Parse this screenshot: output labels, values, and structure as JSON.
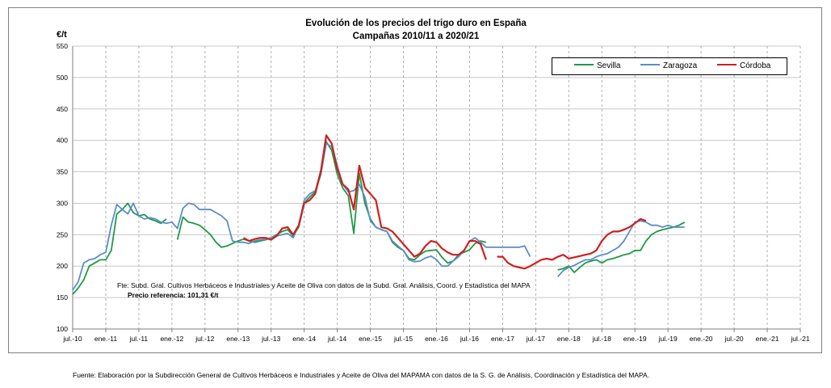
{
  "chart_data": {
    "type": "line",
    "title": "Evolución de los precios del trigo duro en España",
    "subtitle": "Campañas 2010/11 a 2020/21",
    "ylabel": "€/t",
    "ylim": [
      100,
      550
    ],
    "yticks": [
      100,
      150,
      200,
      250,
      300,
      350,
      400,
      450,
      500,
      550
    ],
    "xlim": [
      0,
      132
    ],
    "xticks": [
      0,
      6,
      12,
      18,
      24,
      30,
      36,
      42,
      48,
      54,
      60,
      66,
      72,
      78,
      84,
      90,
      96,
      102,
      108,
      114,
      120,
      126,
      132
    ],
    "xtick_labels": [
      "jul.-10",
      "ene.-11",
      "jul.-11",
      "ene.-12",
      "jul.-12",
      "ene.-13",
      "jul.-13",
      "ene.-14",
      "jul.-14",
      "ene.-15",
      "jul.-15",
      "ene.-16",
      "jul.-16",
      "ene.-17",
      "jul.-17",
      "ene.-18",
      "jul.-18",
      "ene.-19",
      "jul.-19",
      "ene.-20",
      "jul.-20",
      "ene.-21",
      "jul.-21"
    ],
    "grid": true,
    "legend_position": "top-right",
    "series": [
      {
        "name": "Sevilla",
        "color": "#1e9a46",
        "x": [
          0,
          1,
          2,
          3,
          4,
          5,
          6,
          7,
          8,
          9,
          10,
          11,
          12,
          13,
          14,
          15,
          16,
          17,
          18,
          19,
          20,
          21,
          22,
          23,
          24,
          25,
          26,
          27,
          28,
          29,
          30,
          31,
          32,
          33,
          34,
          35,
          36,
          37,
          38,
          39,
          40,
          41,
          42,
          43,
          44,
          45,
          46,
          47,
          48,
          49,
          50,
          51,
          52,
          53,
          54,
          55,
          56,
          57,
          58,
          59,
          60,
          61,
          62,
          63,
          64,
          65,
          66,
          67,
          68,
          69,
          70,
          71,
          72,
          73,
          74,
          75,
          76,
          77,
          78,
          79,
          80,
          81,
          82,
          83,
          84,
          85,
          86,
          87,
          88,
          89,
          90,
          91,
          92,
          93,
          94,
          95,
          96,
          97,
          98,
          99,
          100,
          101,
          102,
          103,
          104,
          105,
          106,
          107,
          108,
          109,
          110,
          111,
          112,
          113,
          114,
          115,
          116,
          117,
          118,
          119,
          120,
          121
        ],
        "values": [
          155,
          175,
          200,
          205,
          210,
          215,
          230,
          285,
          295,
          300,
          285,
          280,
          275,
          270,
          270,
          275,
          270,
          null,
          245,
          280,
          275,
          270,
          270,
          260,
          255,
          245,
          232,
          230,
          235,
          240,
          245,
          240,
          238,
          240,
          240,
          243,
          248,
          255,
          260,
          245,
          260,
          300,
          310,
          320,
          345,
          395,
          380,
          345,
          325,
          315,
          255,
          340,
          300,
          275,
          260,
          258,
          255,
          240,
          230,
          225,
          215,
          215,
          220,
          225,
          225,
          225,
          210,
          200,
          205,
          215,
          220,
          225,
          235,
          238,
          240,
          null,
          null,
          null,
          null,
          null,
          null,
          null,
          null,
          null,
          null,
          null,
          null,
          null,
          null,
          null,
          null,
          null,
          null,
          null,
          null,
          null,
          null,
          null,
          null,
          null,
          null,
          null,
          null,
          null,
          null,
          null,
          null,
          null,
          null,
          null,
          null,
          null,
          null,
          null,
          null,
          null,
          null,
          null,
          null,
          null,
          null,
          null
        ],
        "note": "approximate"
      },
      {
        "name": "Zaragoza",
        "color": "#5b8dc6",
        "values_note": "approximate"
      },
      {
        "name": "Córdoba",
        "color": "#d01f1f"
      }
    ]
  },
  "source_note": "Fte: Subd. Gral. Cultivos Herbáceos e Industriales y Aceite de Oliva con datos de la Subd. Gral. Análisis, Coord. y Estadística del MAPA",
  "reference_price": "Precio referencia: 101,31 €/t",
  "footer": "Fuente: Elaboración por la Subdirección General de Cultivos Herbáceos e Industriales y Aceite de Oliva del MAPAMA con datos de la S. G. de Análisis, Coordinación y Estadística del MAPA."
}
